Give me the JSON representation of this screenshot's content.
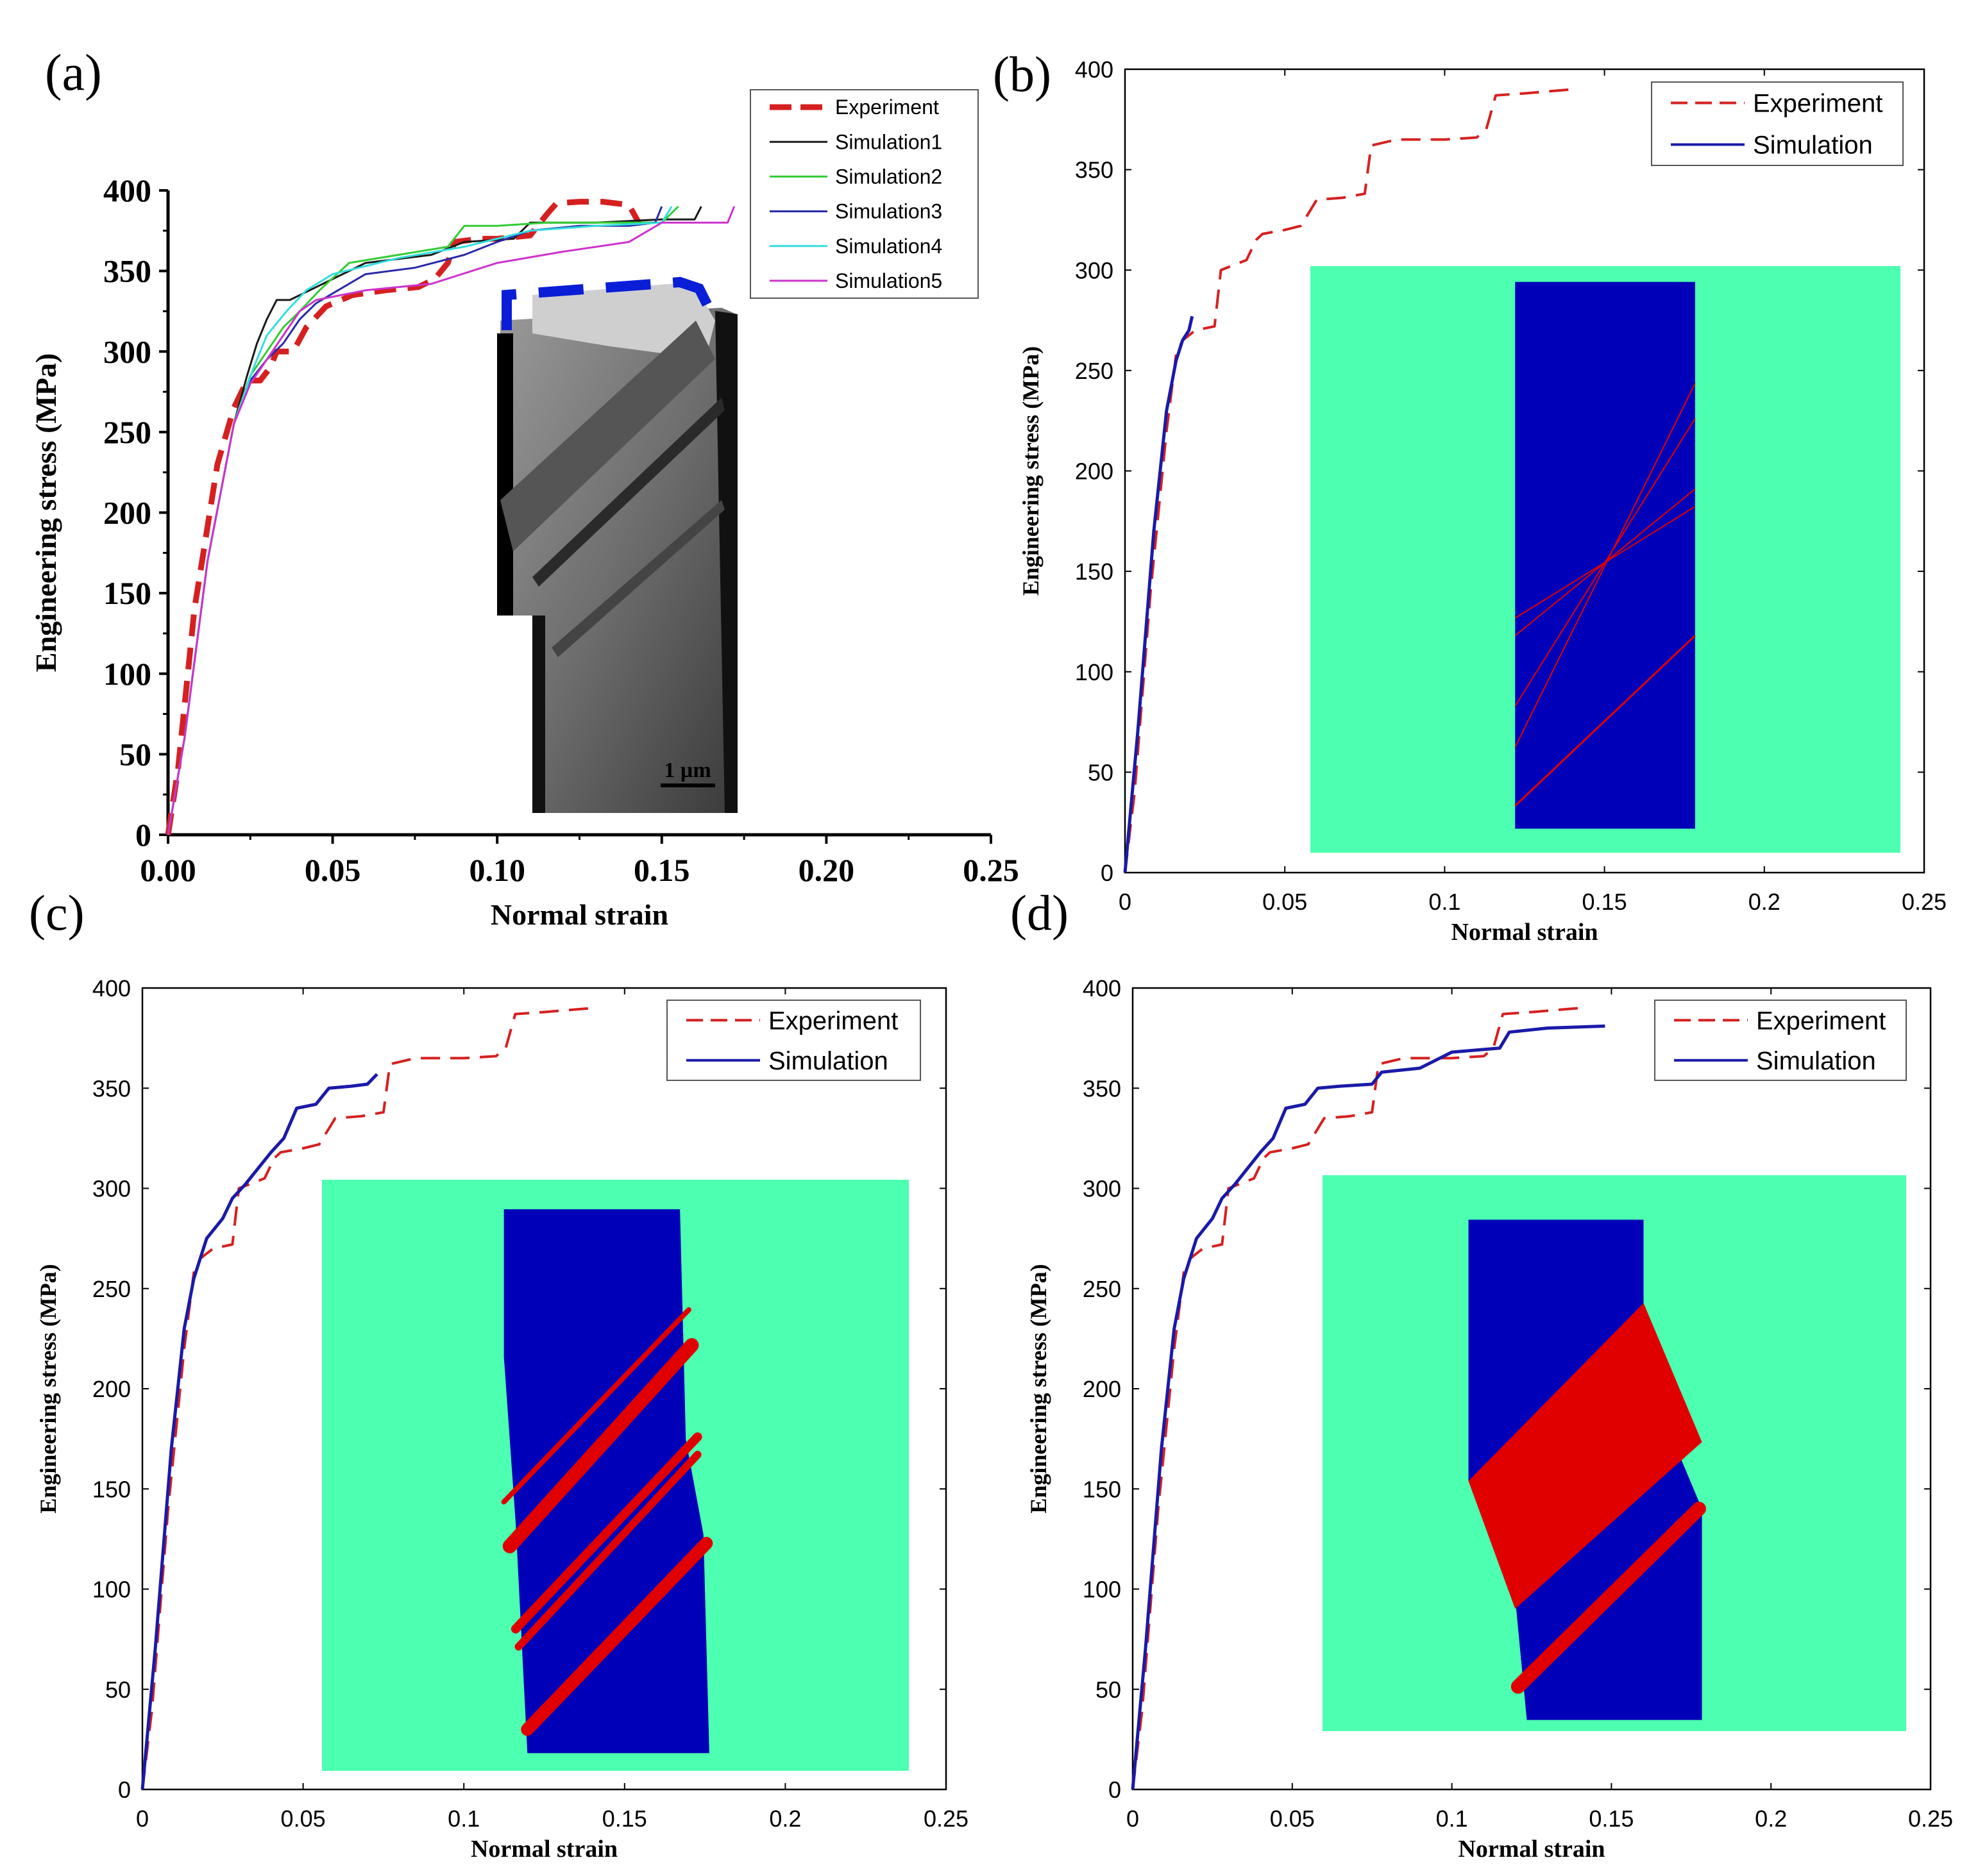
{
  "figure": {
    "panel_labels": [
      "(a)",
      "(b)",
      "(c)",
      "(d)"
    ],
    "colors": {
      "experiment": "#d62020",
      "simulation": "#1a1aa8",
      "inset_bg": "#4dffb0",
      "crystal": "#0000b8",
      "twin": "#e00000"
    }
  },
  "chart_data": [
    {
      "panel": "(a)",
      "type": "line",
      "title": "",
      "xlabel": "Normal strain",
      "ylabel": "Engineering stress (MPa)",
      "xlim": [
        0,
        0.25
      ],
      "ylim": [
        0,
        400
      ],
      "xticks": [
        "0.00",
        "0.05",
        "0.10",
        "0.15",
        "0.20",
        "0.25"
      ],
      "yticks": [
        "0",
        "50",
        "100",
        "150",
        "200",
        "250",
        "300",
        "350",
        "400"
      ],
      "legend_position": "top-right",
      "series": [
        {
          "name": "Experiment",
          "color": "#d62020",
          "dash": "dash",
          "x": [
            0,
            0.003,
            0.008,
            0.015,
            0.02,
            0.024,
            0.028,
            0.031,
            0.033,
            0.038,
            0.042,
            0.048,
            0.056,
            0.066,
            0.076,
            0.081,
            0.085,
            0.087,
            0.095,
            0.1,
            0.11,
            0.115,
            0.118,
            0.125,
            0.132,
            0.14,
            0.143
          ],
          "y": [
            0,
            40,
            140,
            230,
            265,
            282,
            282,
            290,
            300,
            300,
            315,
            328,
            335,
            338,
            340,
            345,
            355,
            368,
            370,
            370,
            372,
            385,
            392,
            393,
            393,
            391,
            380
          ]
        },
        {
          "name": "Simulation1",
          "color": "#1a1a1a",
          "dash": "solid",
          "x": [
            0,
            0.005,
            0.012,
            0.02,
            0.024,
            0.027,
            0.03,
            0.033,
            0.037,
            0.045,
            0.06,
            0.08,
            0.09,
            0.105,
            0.11,
            0.13,
            0.15,
            0.16,
            0.162
          ],
          "y": [
            0,
            60,
            170,
            255,
            285,
            305,
            320,
            332,
            332,
            340,
            355,
            360,
            368,
            370,
            380,
            380,
            382,
            382,
            390
          ]
        },
        {
          "name": "Simulation2",
          "color": "#33cc33",
          "dash": "solid",
          "x": [
            0,
            0.005,
            0.012,
            0.02,
            0.025,
            0.03,
            0.035,
            0.04,
            0.046,
            0.055,
            0.07,
            0.085,
            0.09,
            0.1,
            0.115,
            0.13,
            0.15,
            0.155
          ],
          "y": [
            0,
            60,
            170,
            255,
            285,
            300,
            315,
            325,
            338,
            355,
            360,
            365,
            378,
            378,
            380,
            380,
            380,
            390
          ]
        },
        {
          "name": "Simulation3",
          "color": "#2a2aa8",
          "dash": "solid",
          "x": [
            0,
            0.005,
            0.012,
            0.02,
            0.025,
            0.03,
            0.035,
            0.04,
            0.045,
            0.06,
            0.075,
            0.09,
            0.1,
            0.11,
            0.125,
            0.14,
            0.148,
            0.15
          ],
          "y": [
            0,
            60,
            170,
            255,
            282,
            295,
            305,
            320,
            330,
            348,
            352,
            360,
            368,
            375,
            378,
            378,
            380,
            390
          ]
        },
        {
          "name": "Simulation4",
          "color": "#33dddd",
          "dash": "solid",
          "x": [
            0,
            0.005,
            0.012,
            0.02,
            0.026,
            0.03,
            0.036,
            0.042,
            0.05,
            0.07,
            0.09,
            0.11,
            0.13,
            0.15,
            0.153
          ],
          "y": [
            0,
            60,
            170,
            255,
            290,
            310,
            325,
            338,
            348,
            358,
            365,
            375,
            378,
            380,
            390
          ]
        },
        {
          "name": "Simulation5",
          "color": "#cc33cc",
          "dash": "solid",
          "x": [
            0,
            0.005,
            0.012,
            0.02,
            0.025,
            0.03,
            0.035,
            0.04,
            0.045,
            0.06,
            0.08,
            0.1,
            0.12,
            0.14,
            0.15,
            0.17,
            0.172
          ],
          "y": [
            0,
            60,
            170,
            255,
            280,
            295,
            310,
            325,
            332,
            338,
            342,
            355,
            362,
            368,
            380,
            380,
            390
          ]
        }
      ],
      "inset": {
        "kind": "micrograph",
        "scale_bar": "1 µm"
      }
    },
    {
      "panel": "(b)",
      "type": "line",
      "xlabel": "Normal strain",
      "ylabel": "Engineering stress (MPa)",
      "xlim": [
        0,
        0.25
      ],
      "ylim": [
        0,
        400
      ],
      "xticks": [
        "0",
        "0.05",
        "0.1",
        "0.15",
        "0.2",
        "0.25"
      ],
      "yticks": [
        "0",
        "50",
        "100",
        "150",
        "200",
        "250",
        "300",
        "350",
        "400"
      ],
      "legend_position": "top-right",
      "series": [
        {
          "name": "Experiment",
          "color": "#d62020",
          "dash": "dash",
          "x": [
            0,
            0.003,
            0.008,
            0.013,
            0.016,
            0.018,
            0.022,
            0.028,
            0.03,
            0.038,
            0.041,
            0.043,
            0.05,
            0.055,
            0.06,
            0.068,
            0.075,
            0.077,
            0.085,
            0.1,
            0.11,
            0.113,
            0.116,
            0.125,
            0.14
          ],
          "y": [
            0,
            40,
            140,
            220,
            258,
            265,
            270,
            272,
            300,
            305,
            315,
            318,
            320,
            322,
            335,
            336,
            338,
            362,
            365,
            365,
            366,
            370,
            387,
            388,
            390
          ]
        },
        {
          "name": "Simulation",
          "color": "#1a1aa8",
          "dash": "solid",
          "x": [
            0,
            0.004,
            0.009,
            0.013,
            0.016,
            0.018,
            0.02,
            0.021
          ],
          "y": [
            0,
            70,
            170,
            230,
            255,
            265,
            270,
            277
          ]
        }
      ],
      "inset": {
        "kind": "twin-schematic",
        "twins": "thin"
      }
    },
    {
      "panel": "(c)",
      "type": "line",
      "xlabel": "Normal strain",
      "ylabel": "Engineering stress (MPa)",
      "xlim": [
        0,
        0.25
      ],
      "ylim": [
        0,
        400
      ],
      "xticks": [
        "0",
        "0.05",
        "0.1",
        "0.15",
        "0.2",
        "0.25"
      ],
      "yticks": [
        "0",
        "50",
        "100",
        "150",
        "200",
        "250",
        "300",
        "350",
        "400"
      ],
      "legend_position": "top-right",
      "series": [
        {
          "name": "Experiment",
          "color": "#d62020",
          "dash": "dash",
          "x": [
            0,
            0.003,
            0.008,
            0.013,
            0.016,
            0.018,
            0.022,
            0.028,
            0.03,
            0.038,
            0.041,
            0.043,
            0.05,
            0.055,
            0.06,
            0.068,
            0.075,
            0.077,
            0.085,
            0.1,
            0.11,
            0.113,
            0.116,
            0.125,
            0.14
          ],
          "y": [
            0,
            40,
            140,
            220,
            258,
            265,
            270,
            272,
            300,
            305,
            315,
            318,
            320,
            322,
            335,
            336,
            338,
            362,
            365,
            365,
            366,
            370,
            387,
            388,
            390
          ]
        },
        {
          "name": "Simulation",
          "color": "#1a1aa8",
          "dash": "solid",
          "x": [
            0,
            0.004,
            0.009,
            0.013,
            0.016,
            0.02,
            0.025,
            0.028,
            0.032,
            0.036,
            0.04,
            0.044,
            0.048,
            0.054,
            0.058,
            0.065,
            0.07,
            0.073
          ],
          "y": [
            0,
            70,
            170,
            230,
            255,
            275,
            285,
            295,
            302,
            310,
            318,
            325,
            340,
            342,
            350,
            351,
            352,
            357
          ]
        }
      ],
      "inset": {
        "kind": "twin-schematic",
        "twins": "medium"
      }
    },
    {
      "panel": "(d)",
      "type": "line",
      "xlabel": "Normal strain",
      "ylabel": "Engineering stress (MPa)",
      "xlim": [
        0,
        0.25
      ],
      "ylim": [
        0,
        400
      ],
      "xticks": [
        "0",
        "0.05",
        "0.1",
        "0.15",
        "0.2",
        "0.25"
      ],
      "yticks": [
        "0",
        "50",
        "100",
        "150",
        "200",
        "250",
        "300",
        "350",
        "400"
      ],
      "legend_position": "top-right",
      "series": [
        {
          "name": "Experiment",
          "color": "#d62020",
          "dash": "dash",
          "x": [
            0,
            0.003,
            0.008,
            0.013,
            0.016,
            0.018,
            0.022,
            0.028,
            0.03,
            0.038,
            0.041,
            0.043,
            0.05,
            0.055,
            0.06,
            0.068,
            0.075,
            0.077,
            0.085,
            0.1,
            0.11,
            0.113,
            0.116,
            0.125,
            0.14
          ],
          "y": [
            0,
            40,
            140,
            220,
            258,
            265,
            270,
            272,
            300,
            305,
            315,
            318,
            320,
            322,
            335,
            336,
            338,
            362,
            365,
            365,
            366,
            370,
            387,
            388,
            390
          ]
        },
        {
          "name": "Simulation",
          "color": "#1a1aa8",
          "dash": "solid",
          "x": [
            0,
            0.004,
            0.009,
            0.013,
            0.016,
            0.02,
            0.025,
            0.028,
            0.032,
            0.036,
            0.04,
            0.044,
            0.048,
            0.054,
            0.058,
            0.065,
            0.075,
            0.078,
            0.09,
            0.1,
            0.115,
            0.118,
            0.13,
            0.148
          ],
          "y": [
            0,
            70,
            170,
            230,
            255,
            275,
            285,
            295,
            302,
            310,
            318,
            325,
            340,
            342,
            350,
            351,
            352,
            358,
            360,
            368,
            370,
            378,
            380,
            381
          ]
        }
      ],
      "inset": {
        "kind": "twin-schematic",
        "twins": "thick"
      }
    }
  ]
}
